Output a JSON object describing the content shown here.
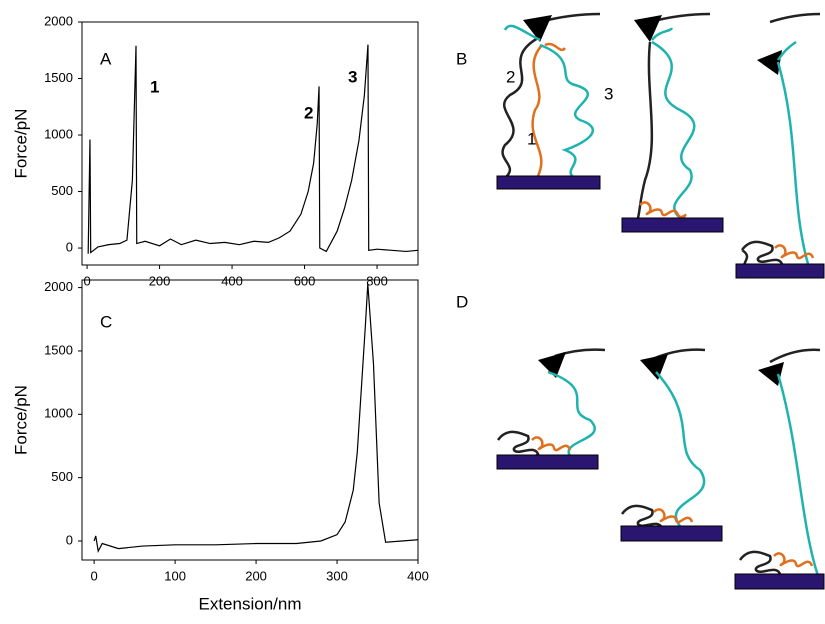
{
  "chart_data": [
    {
      "type": "line",
      "panel_label": "A",
      "ylabel": "Force/pN",
      "x": [
        3,
        8,
        10,
        30,
        60,
        90,
        110,
        125,
        135,
        137,
        160,
        200,
        230,
        260,
        300,
        340,
        380,
        420,
        460,
        500,
        530,
        560,
        590,
        610,
        625,
        635,
        640,
        642,
        660,
        690,
        710,
        730,
        750,
        765,
        775,
        777,
        800,
        840,
        880,
        913
      ],
      "series": [
        {
          "color": "#000000",
          "values": [
            -50,
            960,
            -40,
            10,
            30,
            40,
            70,
            600,
            1790,
            40,
            60,
            20,
            80,
            30,
            70,
            40,
            50,
            30,
            60,
            50,
            90,
            150,
            300,
            500,
            750,
            1100,
            1430,
            0,
            -30,
            150,
            350,
            600,
            950,
            1350,
            1800,
            -20,
            -10,
            -20,
            -30,
            -20
          ]
        }
      ],
      "xlim": [
        -14,
        913
      ],
      "ylim": [
        -150,
        2000
      ],
      "xticks": [
        0,
        200,
        400,
        600,
        800
      ],
      "yticks": [
        0,
        500,
        1000,
        1500,
        2000
      ],
      "annotations": [
        "1",
        "2",
        "3"
      ]
    },
    {
      "type": "line",
      "panel_label": "C",
      "ylabel": "Force/pN",
      "xlabel": "Extension/nm",
      "x": [
        0,
        2,
        5,
        10,
        30,
        60,
        100,
        150,
        200,
        250,
        280,
        300,
        310,
        320,
        325,
        330,
        335,
        338,
        345,
        352,
        360,
        380,
        400
      ],
      "series": [
        {
          "color": "#000000",
          "values": [
            0,
            40,
            -80,
            -20,
            -60,
            -40,
            -30,
            -30,
            -20,
            -20,
            0,
            50,
            150,
            400,
            700,
            1200,
            1700,
            2030,
            1400,
            300,
            -10,
            0,
            10
          ]
        }
      ],
      "xlim": [
        -15,
        400
      ],
      "ylim": [
        -150,
        2060
      ],
      "xticks": [
        0,
        100,
        200,
        300,
        400
      ],
      "yticks": [
        0,
        500,
        1000,
        1500,
        2000
      ]
    }
  ],
  "diagrams": {
    "B": {
      "label": "B",
      "numbers": [
        "2",
        "1",
        "3"
      ]
    },
    "D": {
      "label": "D"
    }
  }
}
